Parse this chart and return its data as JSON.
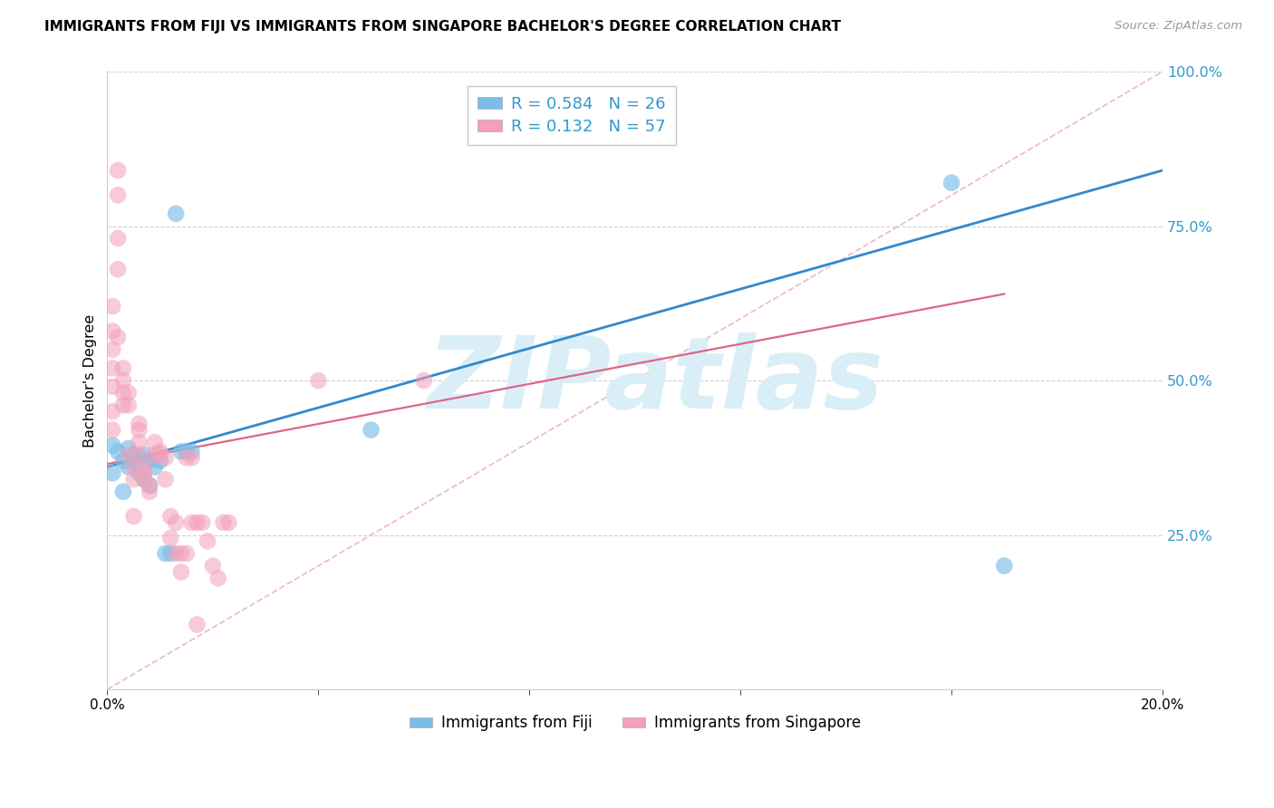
{
  "title": "IMMIGRANTS FROM FIJI VS IMMIGRANTS FROM SINGAPORE BACHELOR'S DEGREE CORRELATION CHART",
  "source": "Source: ZipAtlas.com",
  "ylabel": "Bachelor's Degree",
  "legend_label_blue": "Immigrants from Fiji",
  "legend_label_pink": "Immigrants from Singapore",
  "R_blue": 0.584,
  "N_blue": 26,
  "R_pink": 0.132,
  "N_pink": 57,
  "xlim": [
    0.0,
    0.2
  ],
  "ylim": [
    0.0,
    1.0
  ],
  "xticks": [
    0.0,
    0.04,
    0.08,
    0.12,
    0.16,
    0.2
  ],
  "yticks": [
    0.0,
    0.25,
    0.5,
    0.75,
    1.0
  ],
  "color_blue": "#7bbde8",
  "color_pink": "#f4a0b8",
  "color_blue_line": "#3388cc",
  "color_pink_line": "#dd6688",
  "color_diag": "#e8a0b8",
  "color_axis_right": "#3399cc",
  "background_color": "#ffffff",
  "watermark_color": "#daeef8",
  "blue_scatter_x": [
    0.001,
    0.001,
    0.002,
    0.003,
    0.003,
    0.004,
    0.004,
    0.005,
    0.005,
    0.006,
    0.006,
    0.007,
    0.007,
    0.008,
    0.008,
    0.009,
    0.01,
    0.011,
    0.012,
    0.013,
    0.014,
    0.015,
    0.016,
    0.05,
    0.16,
    0.17
  ],
  "blue_scatter_y": [
    0.395,
    0.35,
    0.385,
    0.37,
    0.32,
    0.39,
    0.36,
    0.38,
    0.37,
    0.375,
    0.35,
    0.38,
    0.34,
    0.37,
    0.33,
    0.36,
    0.37,
    0.22,
    0.22,
    0.77,
    0.385,
    0.385,
    0.385,
    0.42,
    0.82,
    0.2
  ],
  "pink_scatter_x": [
    0.001,
    0.001,
    0.001,
    0.001,
    0.001,
    0.001,
    0.001,
    0.002,
    0.002,
    0.002,
    0.002,
    0.002,
    0.003,
    0.003,
    0.003,
    0.003,
    0.004,
    0.004,
    0.004,
    0.005,
    0.005,
    0.005,
    0.006,
    0.006,
    0.006,
    0.006,
    0.007,
    0.007,
    0.007,
    0.008,
    0.008,
    0.009,
    0.009,
    0.01,
    0.01,
    0.011,
    0.011,
    0.012,
    0.012,
    0.013,
    0.013,
    0.014,
    0.014,
    0.015,
    0.015,
    0.016,
    0.016,
    0.017,
    0.017,
    0.018,
    0.019,
    0.02,
    0.021,
    0.022,
    0.023,
    0.04,
    0.06
  ],
  "pink_scatter_y": [
    0.62,
    0.58,
    0.55,
    0.52,
    0.49,
    0.45,
    0.42,
    0.84,
    0.8,
    0.73,
    0.68,
    0.57,
    0.52,
    0.5,
    0.48,
    0.46,
    0.48,
    0.46,
    0.38,
    0.36,
    0.34,
    0.28,
    0.43,
    0.42,
    0.4,
    0.38,
    0.36,
    0.35,
    0.34,
    0.33,
    0.32,
    0.4,
    0.38,
    0.385,
    0.38,
    0.375,
    0.34,
    0.28,
    0.245,
    0.22,
    0.27,
    0.22,
    0.19,
    0.375,
    0.22,
    0.375,
    0.27,
    0.105,
    0.27,
    0.27,
    0.24,
    0.2,
    0.18,
    0.27,
    0.27,
    0.5,
    0.5
  ],
  "blue_line_x": [
    0.0,
    0.2
  ],
  "blue_line_y": [
    0.36,
    0.84
  ],
  "pink_line_x": [
    0.0,
    0.17
  ],
  "pink_line_y": [
    0.365,
    0.64
  ],
  "diag_line_x": [
    0.0,
    0.2
  ],
  "diag_line_y": [
    0.0,
    1.0
  ]
}
